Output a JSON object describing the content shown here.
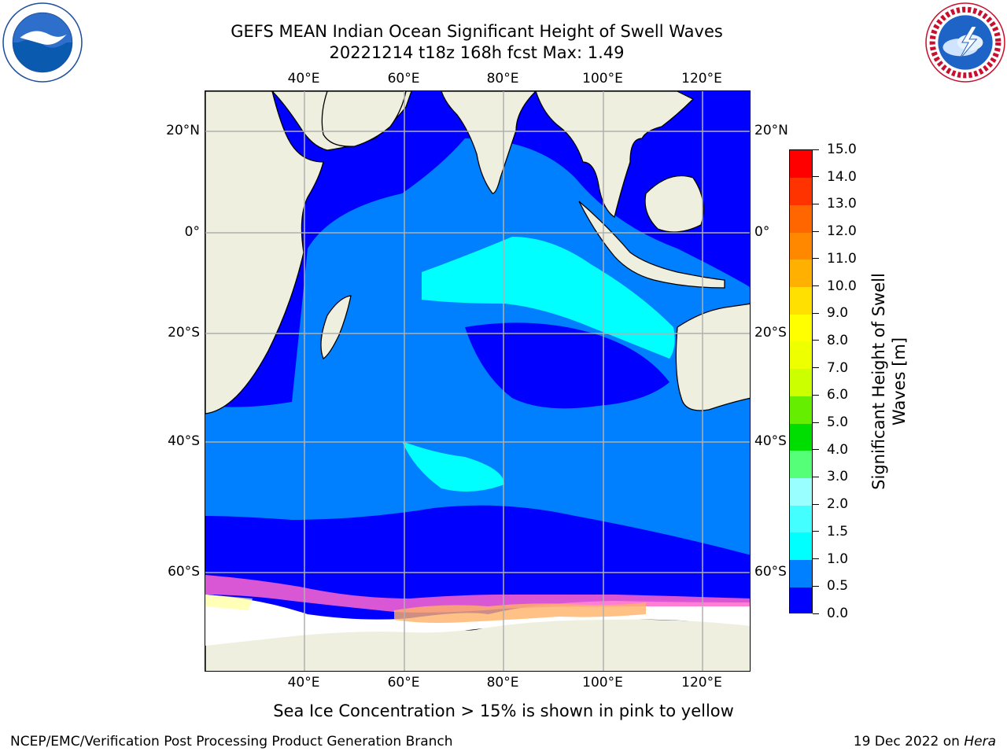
{
  "header": {
    "title_line1": "GEFS MEAN Indian Ocean Significant Height of Swell Waves",
    "title_line2": "20221214 t18z 168h fcst   Max: 1.49"
  },
  "logos": {
    "left": "noaa-logo",
    "right": "nws-logo"
  },
  "map": {
    "lon_ticks": [
      "40°E",
      "60°E",
      "80°E",
      "100°E",
      "120°E"
    ],
    "lat_ticks": [
      "20°N",
      "0°",
      "20°S",
      "40°S",
      "60°S"
    ],
    "colors": {
      "land": "#efefdf",
      "coast": "#000000",
      "grid": "#b0b0b0",
      "ice_pink": "#ff66cc",
      "ice_orange": "#ffb266",
      "ice_yellow": "#ffff99"
    }
  },
  "colorbar": {
    "title": "Significant Height of Swell Waves [m]",
    "tick_labels": [
      "0.0",
      "0.5",
      "1.0",
      "1.5",
      "2.0",
      "3.0",
      "4.0",
      "5.0",
      "6.0",
      "7.0",
      "8.0",
      "9.0",
      "10.0",
      "11.0",
      "12.0",
      "13.0",
      "14.0",
      "15.0"
    ],
    "colors": [
      "#0000ff",
      "#0080ff",
      "#00ffff",
      "#44ffff",
      "#99ffff",
      "#55ff77",
      "#00dd00",
      "#66ee00",
      "#ccff00",
      "#eeff00",
      "#ffff00",
      "#ffe000",
      "#ffb000",
      "#ff8800",
      "#ff6600",
      "#ff3300",
      "#ff0000"
    ]
  },
  "caption": "Sea Ice Concentration > 15% is shown in pink to yellow",
  "footer": {
    "left": "NCEP/EMC/Verification Post Processing Product Generation Branch",
    "right_prefix": "19 Dec 2022 on ",
    "right_host": "Hera"
  }
}
